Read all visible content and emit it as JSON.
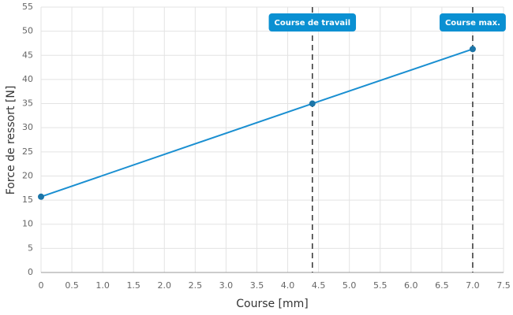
{
  "chart_data": {
    "type": "line",
    "x_label": "Course [mm]",
    "y_label": "Force de ressort [N]",
    "series": [
      {
        "name": "Force de ressort",
        "color": "#1a8fd1",
        "x": [
          0,
          4.4,
          7.0
        ],
        "values": [
          15.7,
          35,
          46.3
        ]
      }
    ],
    "xlim": [
      0,
      7.5
    ],
    "xticks": [
      0,
      0.5,
      {
        "value": 1,
        "label": "1.0"
      },
      1.5,
      {
        "value": 2,
        "label": "2.0"
      },
      2.5,
      {
        "value": 3,
        "label": "3.0"
      },
      3.5,
      {
        "value": 4,
        "label": "4.0"
      },
      4.5,
      {
        "value": 5,
        "label": "5.0"
      },
      5.5,
      {
        "value": 6,
        "label": "6.0"
      },
      6.5,
      {
        "value": 7,
        "label": "7.0"
      },
      7.5
    ],
    "ylim": [
      0,
      55
    ],
    "yticks": [
      0,
      5,
      10,
      15,
      20,
      25,
      30,
      35,
      40,
      45,
      50,
      55
    ],
    "grid": true,
    "annotations": [
      {
        "x": 4.4,
        "label": "Course de travail"
      },
      {
        "x": 7.0,
        "label": "Course max."
      }
    ]
  }
}
